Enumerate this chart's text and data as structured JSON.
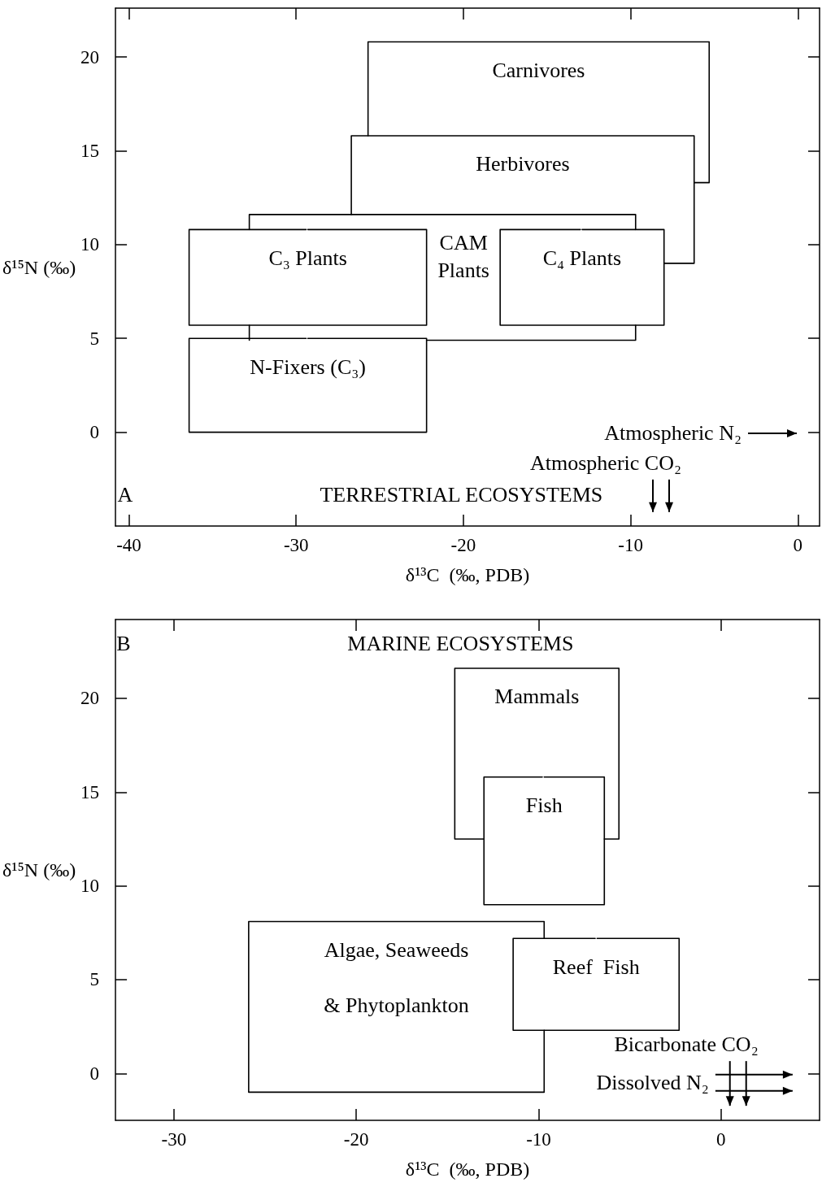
{
  "chart_data": [
    {
      "type": "line",
      "xlabel": "δ¹³C  (‰, PDB)",
      "ylabel": "δ¹⁵N (‰)",
      "xlim": [
        -40.8,
        1.3
      ],
      "ylim": [
        -5,
        22.6
      ],
      "xticks": [
        -40,
        -30,
        -20,
        -10,
        0
      ],
      "yticks": [
        0,
        5,
        10,
        15,
        20
      ],
      "legend": false,
      "grid": false,
      "marker": "none",
      "line_style": "solid",
      "annotations": [
        "A",
        "TERRESTRIAL  ECOSYSTEMS",
        "Atmospheric N₂",
        "Atmospheric CO₂"
      ],
      "series": [
        {
          "name": "Carnivores",
          "color": "#000000",
          "x": [
            -25.7,
            -25.7,
            -5.3,
            -5.3,
            -6.2
          ],
          "values": [
            15.8,
            20.8,
            20.8,
            13.3,
            13.3
          ]
        },
        {
          "name": "Herbivores",
          "color": "#000000",
          "x": [
            -26.7,
            -26.7,
            -6.2,
            -6.2,
            -8.0
          ],
          "values": [
            11.6,
            15.8,
            15.8,
            9.0,
            9.0
          ]
        },
        {
          "name": "CAM\nPlants",
          "color": "#000000",
          "x": [
            -32.8,
            -32.8,
            -9.7,
            -9.7,
            null,
            -32.8,
            -32.8,
            null,
            -22.2,
            -9.7,
            -9.7
          ],
          "values": [
            10.8,
            11.6,
            11.6,
            10.8,
            null,
            5.7,
            4.9,
            null,
            4.9,
            4.9,
            5.7
          ]
        },
        {
          "name": "C₃ Plants",
          "color": "#000000",
          "x": [
            -29.3,
            -22.2,
            -22.2,
            -36.4,
            -36.4,
            -29.4
          ],
          "values": [
            10.8,
            10.8,
            5.7,
            5.7,
            10.8,
            10.8
          ]
        },
        {
          "name": "C₄ Plants",
          "color": "#000000",
          "x": [
            -12.9,
            -8.0,
            -8.0,
            -17.8,
            -17.8,
            -13.0
          ],
          "values": [
            10.8,
            10.8,
            5.7,
            5.7,
            10.8,
            10.8
          ]
        },
        {
          "name": "N-Fixers (C₃)",
          "color": "#000000",
          "x": [
            -29.3,
            -22.2,
            -22.2,
            -36.4,
            -36.4,
            -29.4
          ],
          "values": [
            5.0,
            5.0,
            0,
            0,
            5.0,
            5.0
          ]
        }
      ]
    },
    {
      "type": "line",
      "xlabel": "δ¹³C  (‰, PDB)",
      "ylabel": "δ¹⁵N (‰)",
      "xlim": [
        -33.2,
        5.4
      ],
      "ylim": [
        -2.5,
        24.2
      ],
      "xticks": [
        -30,
        -20,
        -10,
        0
      ],
      "yticks": [
        0,
        5,
        10,
        15,
        20
      ],
      "legend": false,
      "grid": false,
      "marker": "none",
      "line_style": "solid",
      "annotations": [
        "B",
        "MARINE ECOSYSTEMS",
        "Bicarbonate CO₂",
        "Dissolved N₂"
      ],
      "series": [
        {
          "name": "Mammals",
          "color": "#000000",
          "x": [
            -13.0,
            -14.6,
            -14.6,
            -5.6,
            -5.6,
            -6.4
          ],
          "values": [
            12.5,
            12.5,
            21.6,
            21.6,
            12.5,
            12.5
          ]
        },
        {
          "name": "Fish",
          "color": "#000000",
          "x": [
            -9.7,
            -6.4,
            -6.4,
            -13.0,
            -13.0,
            -9.8
          ],
          "values": [
            15.8,
            15.8,
            9.0,
            9.0,
            15.8,
            15.8
          ]
        },
        {
          "name": "Algae, Seaweeds\n\n& Phytoplankton",
          "color": "#000000",
          "x": [
            -9.7,
            -9.7,
            -25.9,
            -25.9,
            -9.7,
            -9.7
          ],
          "values": [
            2.3,
            -1.0,
            -1.0,
            8.1,
            8.1,
            7.2
          ]
        },
        {
          "name": "Reef  Fish",
          "color": "#000000",
          "x": [
            -6.8,
            -2.3,
            -2.3,
            -11.4,
            -11.4,
            -6.9
          ],
          "values": [
            7.2,
            7.2,
            2.3,
            2.3,
            7.2,
            7.2
          ]
        }
      ]
    }
  ]
}
